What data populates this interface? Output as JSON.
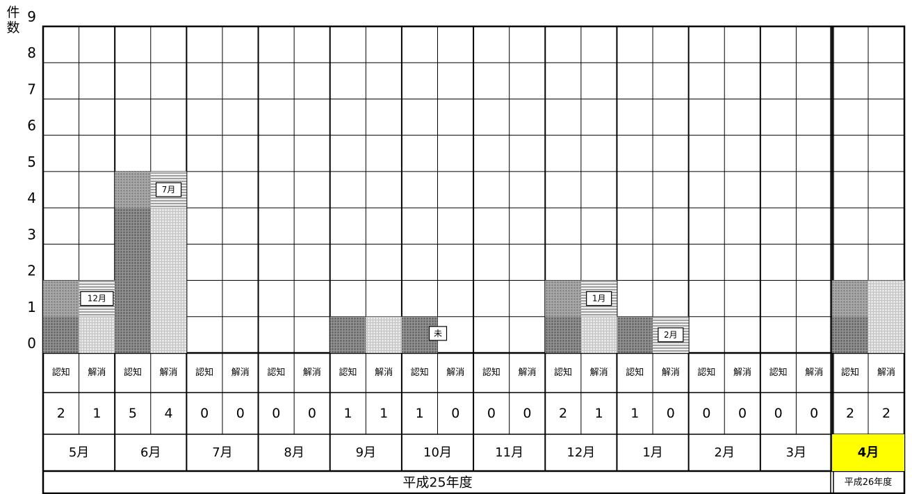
{
  "y_unit_label": [
    "件",
    "数"
  ],
  "chart_data": {
    "type": "bar",
    "subtype": "grouped-bar-with-table",
    "ylabel": "件数",
    "ylim": [
      0,
      9
    ],
    "yticks": [
      0,
      1,
      2,
      3,
      4,
      5,
      6,
      7,
      8,
      9
    ],
    "grid": true,
    "series_names": [
      "認知",
      "解消"
    ],
    "months": [
      {
        "label": "5月",
        "recognized": 2,
        "resolved": 1,
        "resolved_note": "12月"
      },
      {
        "label": "6月",
        "recognized": 5,
        "resolved": 4,
        "resolved_note": "7月"
      },
      {
        "label": "7月",
        "recognized": 0,
        "resolved": 0
      },
      {
        "label": "8月",
        "recognized": 0,
        "resolved": 0
      },
      {
        "label": "9月",
        "recognized": 1,
        "resolved": 1
      },
      {
        "label": "10月",
        "recognized": 1,
        "resolved": 0,
        "recognized_note": "未"
      },
      {
        "label": "11月",
        "recognized": 0,
        "resolved": 0
      },
      {
        "label": "12月",
        "recognized": 2,
        "resolved": 1,
        "resolved_note": "1月"
      },
      {
        "label": "1月",
        "recognized": 1,
        "resolved": 0,
        "resolved_note": "2月"
      },
      {
        "label": "2月",
        "recognized": 0,
        "resolved": 0
      },
      {
        "label": "3月",
        "recognized": 0,
        "resolved": 0
      },
      {
        "label": "4月",
        "recognized": 2,
        "resolved": 2,
        "highlight": true
      }
    ],
    "fiscal_years": [
      {
        "label": "平成25年度",
        "months": 11
      },
      {
        "label": "平成26年度",
        "months": 1
      }
    ]
  },
  "colors": {
    "recognized_bar": "#7a7a7a",
    "resolved_bar": "#d8d8d8",
    "highlight_cell": "#ffff00",
    "grid": "#000000"
  }
}
